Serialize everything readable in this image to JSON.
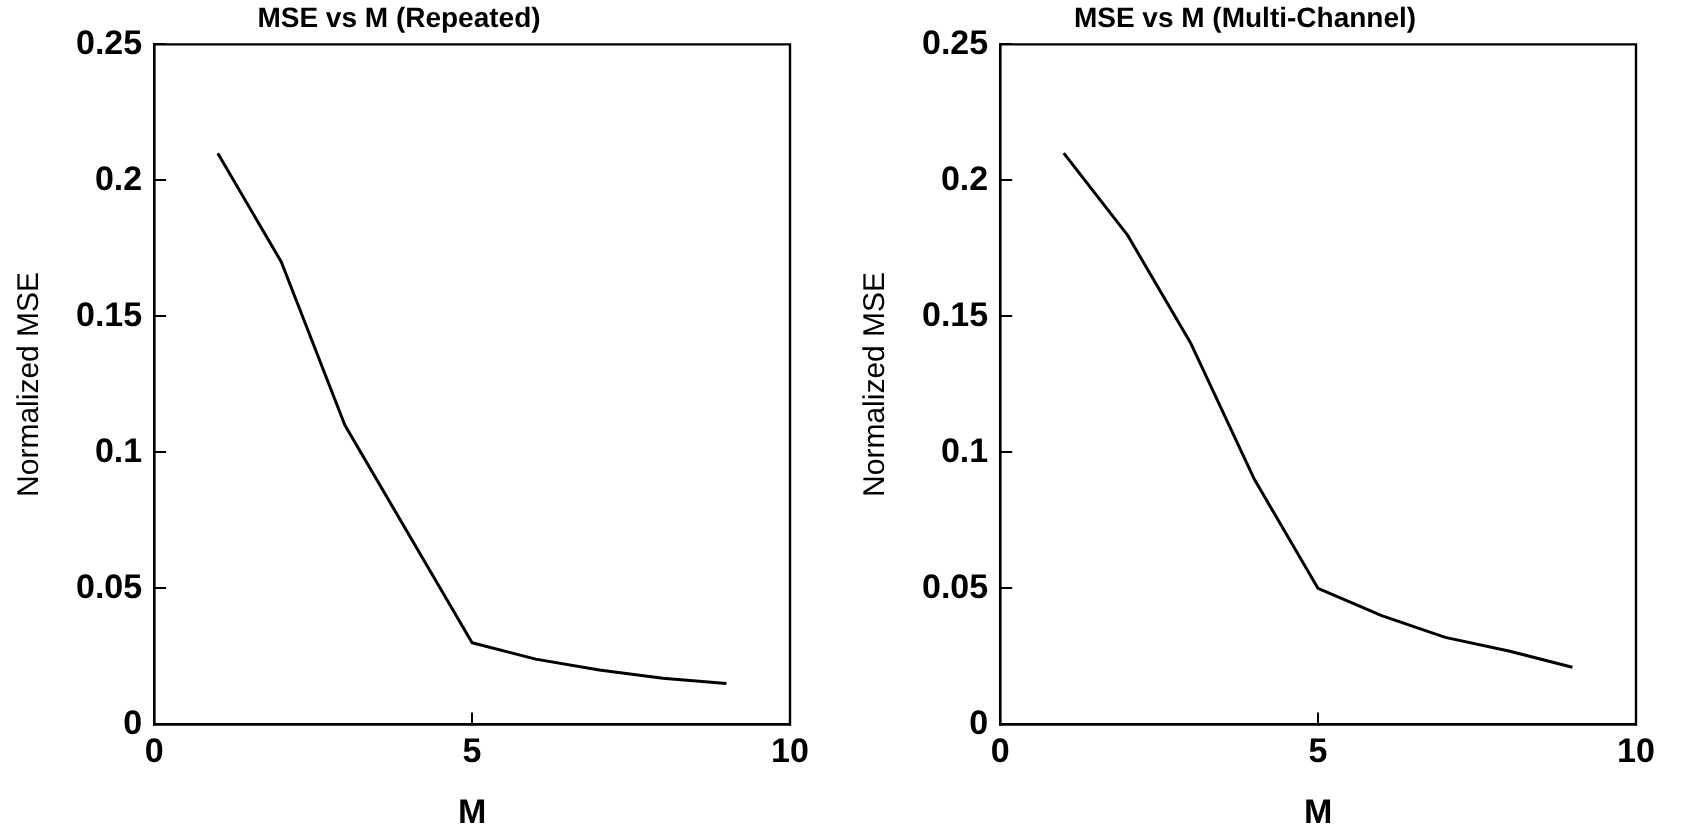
{
  "chart_data": [
    {
      "type": "line",
      "title": "MSE vs M (Repeated)",
      "xlabel": "M",
      "ylabel": "Normalized MSE",
      "x": [
        1,
        2,
        3,
        4,
        5,
        6,
        7,
        8,
        9
      ],
      "series": [
        {
          "color": "#000000",
          "values": [
            0.21,
            0.17,
            0.11,
            0.07,
            0.03,
            0.024,
            0.02,
            0.017,
            0.015
          ]
        }
      ],
      "xlim": [
        0,
        10
      ],
      "xticks": [
        0,
        5,
        10
      ],
      "ylim": [
        0,
        0.25
      ],
      "yticks": [
        0,
        0.05,
        0.1,
        0.15,
        0.2,
        0.25
      ],
      "grid": false,
      "legend": false,
      "marker": "none",
      "line_style": "solid"
    },
    {
      "type": "line",
      "title": "MSE vs M (Multi-Channel)",
      "xlabel": "M",
      "ylabel": "Normalized MSE",
      "x": [
        1,
        2,
        3,
        4,
        5,
        6,
        7,
        8,
        9
      ],
      "series": [
        {
          "color": "#000000",
          "values": [
            0.21,
            0.18,
            0.14,
            0.09,
            0.05,
            0.04,
            0.032,
            0.027,
            0.021
          ]
        }
      ],
      "xlim": [
        0,
        10
      ],
      "xticks": [
        0,
        5,
        10
      ],
      "ylim": [
        0,
        0.25
      ],
      "yticks": [
        0,
        0.05,
        0.1,
        0.15,
        0.2,
        0.25
      ],
      "grid": false,
      "legend": false,
      "marker": "none",
      "line_style": "solid"
    }
  ]
}
